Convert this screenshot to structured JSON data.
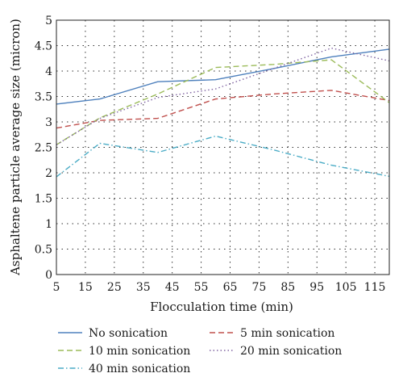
{
  "chart_data": {
    "type": "line",
    "xlabel": "Flocculation time (min)",
    "ylabel": "Asphaltene particle average size (micron)",
    "xlim": [
      5,
      120
    ],
    "ylim": [
      0,
      5
    ],
    "x_ticks": [
      "5",
      "15",
      "25",
      "35",
      "45",
      "55",
      "65",
      "75",
      "85",
      "95",
      "105",
      "115"
    ],
    "y_ticks": [
      "0",
      "0.5",
      "1",
      "1.5",
      "2",
      "2.5",
      "3",
      "3.5",
      "4",
      "4.5",
      "5"
    ],
    "grid": true,
    "legend_position": "bottom",
    "series": [
      {
        "name": "No sonication",
        "color": "#4f81bd",
        "dash": "solid",
        "x": [
          5,
          20,
          40,
          60,
          80,
          100,
          120
        ],
        "y": [
          3.35,
          3.45,
          3.79,
          3.83,
          4.05,
          4.28,
          4.43
        ]
      },
      {
        "name": "5 min sonication",
        "color": "#c0504d",
        "dash": "dash",
        "x": [
          5,
          20,
          40,
          60,
          80,
          100,
          120
        ],
        "y": [
          2.88,
          3.03,
          3.07,
          3.45,
          3.55,
          3.62,
          3.42
        ]
      },
      {
        "name": "10 min sonication",
        "color": "#9bbb59",
        "dash": "dash",
        "x": [
          5,
          20,
          40,
          60,
          80,
          100,
          120
        ],
        "y": [
          2.55,
          3.08,
          3.55,
          4.07,
          4.13,
          4.22,
          3.38
        ]
      },
      {
        "name": "20 min sonication",
        "color": "#8064a2",
        "dash": "dot",
        "x": [
          5,
          20,
          40,
          60,
          80,
          100,
          120
        ],
        "y": [
          2.55,
          3.07,
          3.48,
          3.65,
          4.05,
          4.45,
          4.2
        ]
      },
      {
        "name": "40 min sonication",
        "color": "#4bacc6",
        "dash": "dashdot",
        "x": [
          5,
          20,
          40,
          60,
          80,
          100,
          120
        ],
        "y": [
          1.92,
          2.58,
          2.4,
          2.72,
          2.45,
          2.15,
          1.93
        ]
      }
    ]
  }
}
